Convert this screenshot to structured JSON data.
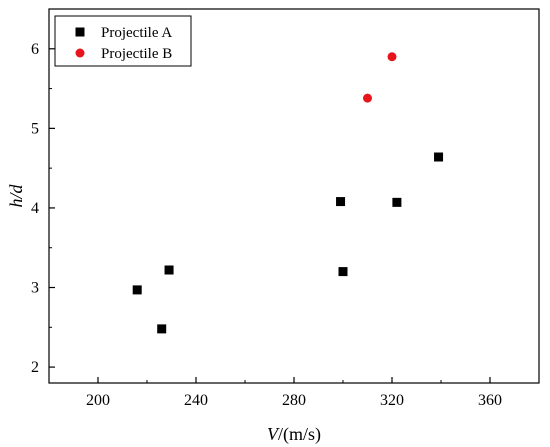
{
  "chart_data": {
    "type": "scatter",
    "title": "",
    "xlabel": "V/(m/s)",
    "xlabel_var": "V",
    "xlabel_unit": "/(m/s)",
    "ylabel": "h/d",
    "xlim": [
      180,
      380
    ],
    "ylim": [
      1.8,
      6.5
    ],
    "x_ticks": [
      200,
      240,
      280,
      320,
      360
    ],
    "y_ticks": [
      2,
      3,
      4,
      5,
      6
    ],
    "grid": false,
    "legend_position": "top-left",
    "series": [
      {
        "name": "Projectile A",
        "marker": "square",
        "color": "#000000",
        "x": [
          216,
          226,
          229,
          299,
          300,
          322,
          339
        ],
        "y": [
          2.97,
          2.48,
          3.22,
          4.08,
          3.2,
          4.07,
          4.64
        ]
      },
      {
        "name": "Projectile B",
        "marker": "circle",
        "color": "#e8141b",
        "x": [
          310,
          320
        ],
        "y": [
          5.38,
          5.9
        ]
      }
    ]
  }
}
